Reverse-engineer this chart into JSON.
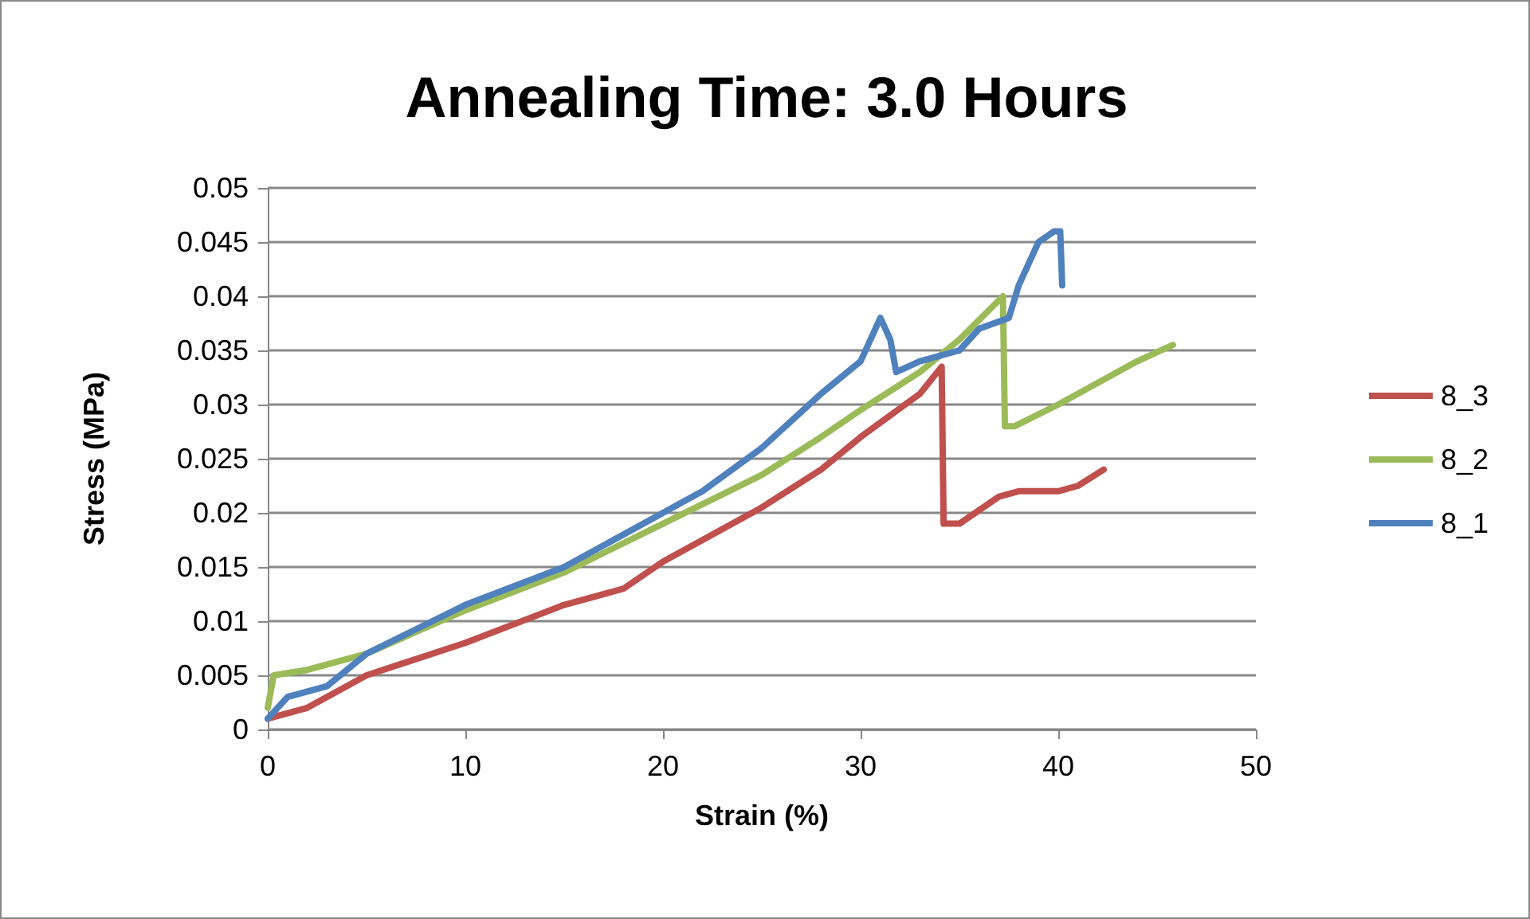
{
  "chart_data": {
    "type": "line",
    "title": "Annealing Time: 3.0 Hours",
    "xlabel": "Strain (%)",
    "ylabel": "Stress (MPa)",
    "xlim": [
      0,
      50
    ],
    "xticks": [
      0,
      10,
      20,
      30,
      40,
      50
    ],
    "ylim": [
      0,
      0.05
    ],
    "yticks": [
      0,
      0.005,
      0.01,
      0.015,
      0.02,
      0.025,
      0.03,
      0.035,
      0.04,
      0.045,
      0.05
    ],
    "grid": "y",
    "legend": "right",
    "marker": "none",
    "line_style": "solid",
    "series": [
      {
        "name": "8_3",
        "color": "#c0504d",
        "x": [
          0,
          2,
          5,
          10,
          15,
          18,
          20,
          25,
          28,
          30,
          33,
          34.1,
          34.2,
          35,
          37,
          38,
          40,
          41,
          42.3
        ],
        "values": [
          0.001,
          0.002,
          0.005,
          0.008,
          0.0115,
          0.013,
          0.0155,
          0.0205,
          0.024,
          0.027,
          0.031,
          0.0335,
          0.019,
          0.019,
          0.0215,
          0.022,
          0.022,
          0.0225,
          0.024
        ]
      },
      {
        "name": "8_2",
        "color": "#9bbb59",
        "x": [
          0,
          0.3,
          2,
          5,
          10,
          15,
          20,
          25,
          28,
          30,
          33,
          35,
          37.2,
          37.3,
          37.8,
          40,
          42,
          44,
          45.8
        ],
        "values": [
          0.002,
          0.005,
          0.0055,
          0.007,
          0.011,
          0.0145,
          0.019,
          0.0235,
          0.027,
          0.0295,
          0.033,
          0.036,
          0.04,
          0.028,
          0.028,
          0.03,
          0.032,
          0.034,
          0.0355
        ]
      },
      {
        "name": "8_1",
        "color": "#4f81bd",
        "x": [
          0,
          1,
          3,
          5,
          10,
          15,
          20,
          22,
          25,
          28,
          30,
          31,
          31.5,
          31.8,
          33,
          35,
          36,
          37.5,
          38,
          39,
          39.8,
          40.1,
          40.2
        ],
        "values": [
          0.001,
          0.003,
          0.004,
          0.007,
          0.0115,
          0.015,
          0.02,
          0.022,
          0.026,
          0.031,
          0.034,
          0.038,
          0.036,
          0.033,
          0.034,
          0.035,
          0.037,
          0.038,
          0.041,
          0.045,
          0.046,
          0.046,
          0.041
        ]
      }
    ]
  }
}
